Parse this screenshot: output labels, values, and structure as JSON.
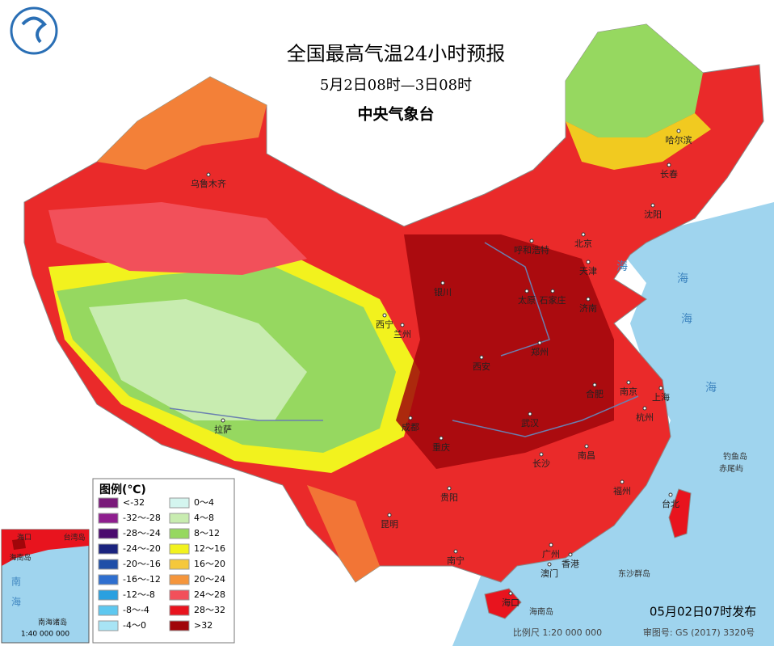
{
  "header": {
    "title": "全国最高气温24小时预报",
    "subtitle": "5月2日08时—3日08时",
    "agency": "中央气象台"
  },
  "legend": {
    "title": "图例(℃)",
    "items": [
      {
        "label": "<-32",
        "color": "#7a1a7a"
      },
      {
        "label": "-32～-28",
        "color": "#8e1e8e"
      },
      {
        "label": "-28～-24",
        "color": "#4b0a6e"
      },
      {
        "label": "-24～-20",
        "color": "#1a237e"
      },
      {
        "label": "-20～-16",
        "color": "#1f4fa8"
      },
      {
        "label": "-16～-12",
        "color": "#2f6fcf"
      },
      {
        "label": "-12～-8",
        "color": "#2aa0e0"
      },
      {
        "label": "-8～-4",
        "color": "#5ec8f0"
      },
      {
        "label": "-4～0",
        "color": "#a8e4f5"
      },
      {
        "label": "0～4",
        "color": "#d4f5ef"
      },
      {
        "label": "4～8",
        "color": "#c8ecb0"
      },
      {
        "label": "8～12",
        "color": "#96d860"
      },
      {
        "label": "12～16",
        "color": "#f2f21e"
      },
      {
        "label": "16～20",
        "color": "#f5c83c"
      },
      {
        "label": "20～24",
        "color": "#f5963c"
      },
      {
        "label": "24～28",
        "color": "#f2505a"
      },
      {
        "label": "28～32",
        "color": "#e8141e"
      },
      {
        "label": ">32",
        "color": "#a0060a"
      }
    ]
  },
  "cities": [
    "乌鲁木齐",
    "哈尔滨",
    "长春",
    "沈阳",
    "北京",
    "天津",
    "呼和浩特",
    "银川",
    "太原",
    "石家庄",
    "济南",
    "西宁",
    "兰州",
    "西安",
    "郑州",
    "合肥",
    "南京",
    "上海",
    "杭州",
    "成都",
    "重庆",
    "武汉",
    "长沙",
    "南昌",
    "拉萨",
    "贵阳",
    "昆明",
    "福州",
    "台北",
    "南宁",
    "广州",
    "香港",
    "澳门",
    "海口"
  ],
  "seas": [
    "海",
    "海",
    "海",
    "海",
    "钓鱼岛",
    "赤尾屿",
    "东沙群岛",
    "海南岛"
  ],
  "inset": {
    "labels": [
      "海口",
      "海南岛",
      "台湾岛",
      "南",
      "海",
      "南海诸岛"
    ],
    "scale": "1:40 000 000"
  },
  "footer": {
    "issued": "05月02日07时发布",
    "scale": "比例尺 1:20 000 000",
    "review": "审图号: GS (2017) 3320号"
  }
}
